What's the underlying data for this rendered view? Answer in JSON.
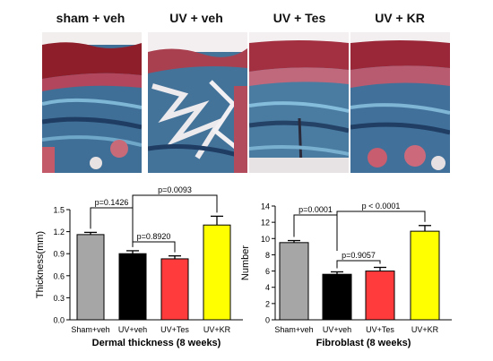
{
  "panels": [
    {
      "label": "sham + veh"
    },
    {
      "label": "UV + veh"
    },
    {
      "label": "UV + Tes"
    },
    {
      "label": "UV + KR"
    }
  ],
  "chart_data": [
    {
      "type": "bar",
      "categories": [
        "Sham+veh",
        "UV+veh",
        "UV+Tes",
        "UV+KR"
      ],
      "values": [
        1.16,
        0.9,
        0.83,
        1.29
      ],
      "errors": [
        0.03,
        0.04,
        0.04,
        0.12
      ],
      "colors": [
        "#a6a6a6",
        "#000000",
        "#ff3b3b",
        "#ffff00"
      ],
      "xlabel": "Dermal thickness (8 weeks)",
      "ylabel": "Thickness(mm)",
      "ylim": [
        0,
        1.5
      ],
      "yticks": [
        "0.0",
        "0.3",
        "0.6",
        "0.9",
        "1.2",
        "1.5"
      ],
      "annotations": [
        {
          "text": "p=0.1426",
          "from": 0,
          "to": 1
        },
        {
          "text": "p=0.0093",
          "from": 1,
          "to": 3
        },
        {
          "text": "p=0.8920",
          "from": 1,
          "to": 2
        }
      ]
    },
    {
      "type": "bar",
      "categories": [
        "Sham+veh",
        "UV+veh",
        "UV+Tes",
        "UV+KR"
      ],
      "values": [
        9.5,
        5.6,
        6.0,
        10.9
      ],
      "errors": [
        0.25,
        0.3,
        0.45,
        0.7
      ],
      "colors": [
        "#a6a6a6",
        "#000000",
        "#ff3b3b",
        "#ffff00"
      ],
      "xlabel": "Fibroblast (8 weeks)",
      "ylabel": "Number",
      "ylim": [
        0,
        14
      ],
      "yticks": [
        "0",
        "2",
        "4",
        "6",
        "8",
        "10",
        "12",
        "14"
      ],
      "annotations": [
        {
          "text": "p=0.0001",
          "from": 0,
          "to": 1
        },
        {
          "text": "p < 0.0001",
          "from": 1,
          "to": 3
        },
        {
          "text": "p=0.9057",
          "from": 1,
          "to": 2
        }
      ]
    }
  ]
}
